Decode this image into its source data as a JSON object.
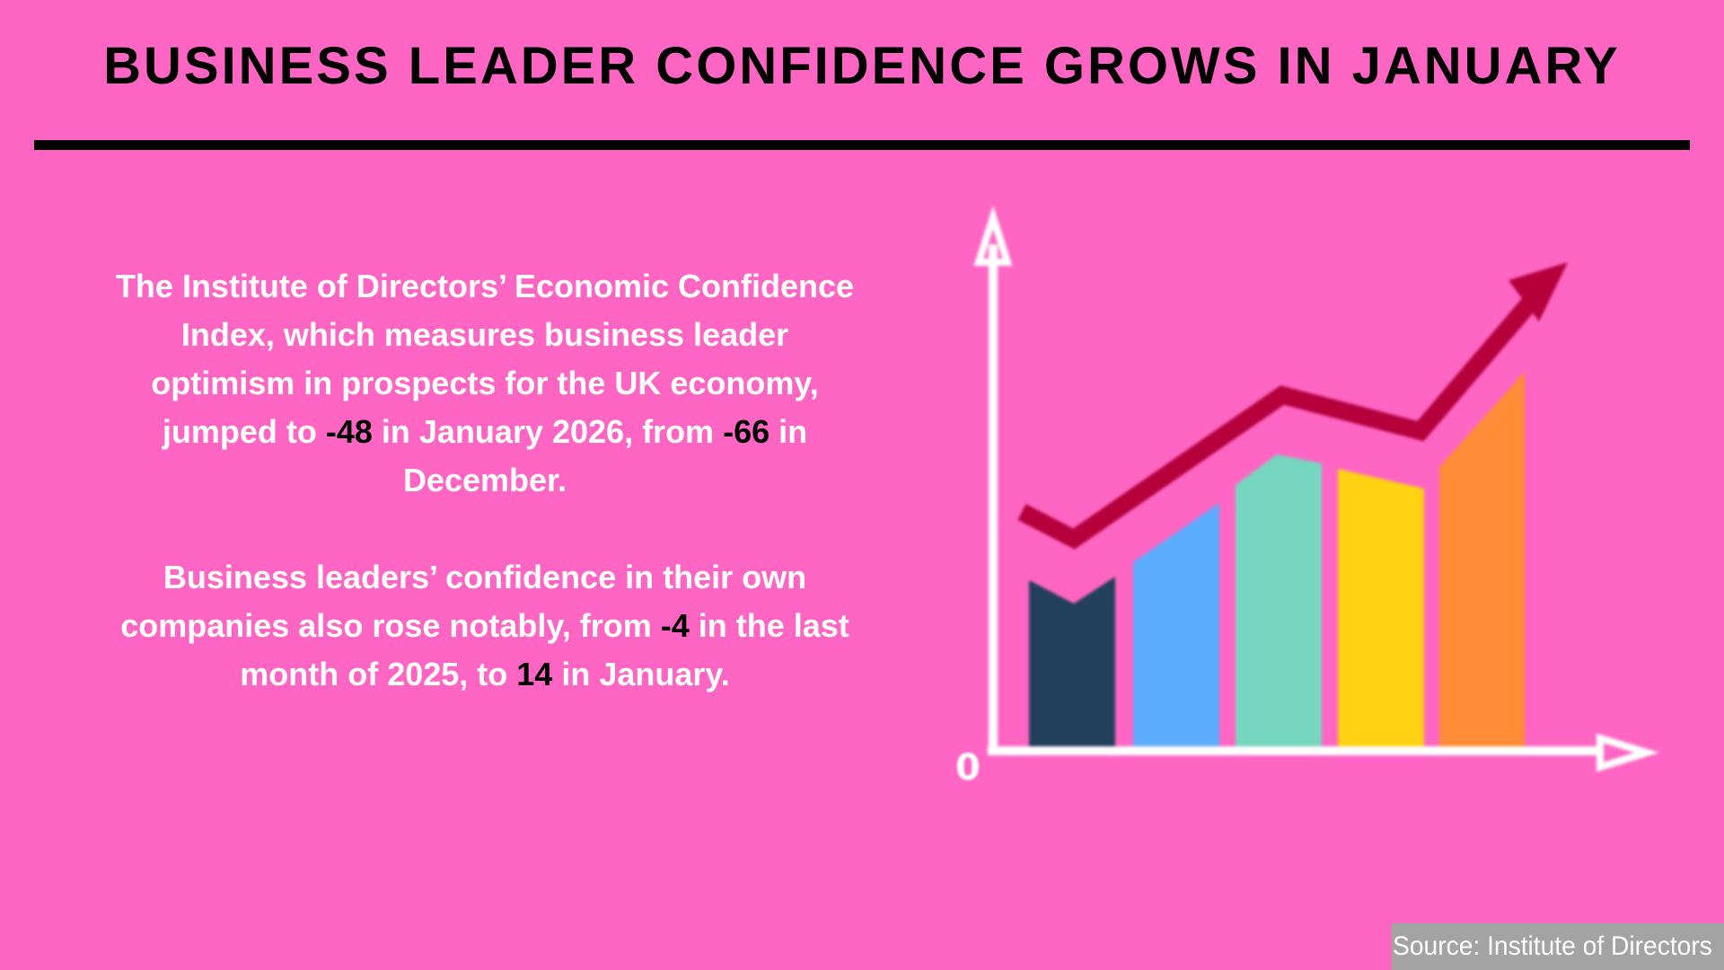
{
  "header": {
    "title": "BUSINESS LEADER CONFIDENCE GROWS IN JANUARY"
  },
  "body": {
    "paragraph1": {
      "text_1": "The Institute of Directors’ Economic Confidence Index, which measures business leader optimism in prospects for the UK economy, jumped to ",
      "value_1": "-48",
      "text_2": " in January 2026, from ",
      "value_2": "-66",
      "text_3": " in December."
    },
    "paragraph2": {
      "text_1": "Business leaders’ confidence in their own companies also rose notably, from ",
      "value_1": "-4",
      "text_2": " in the last month of 2025, to ",
      "value_2": "14",
      "text_3": " in January."
    }
  },
  "illustration": {
    "zero_label": "0",
    "bar_colors": [
      "#223f5c",
      "#5dadff",
      "#76d6c0",
      "#ffd214",
      "#ff8c36"
    ],
    "trend_color": "#b5003c"
  },
  "footer": {
    "source": "Source: Institute of Directors"
  },
  "colors": {
    "background": "#ff66c4",
    "text": "#ffffff",
    "highlight": "#000000",
    "source_bg": "#a3a3a3"
  }
}
